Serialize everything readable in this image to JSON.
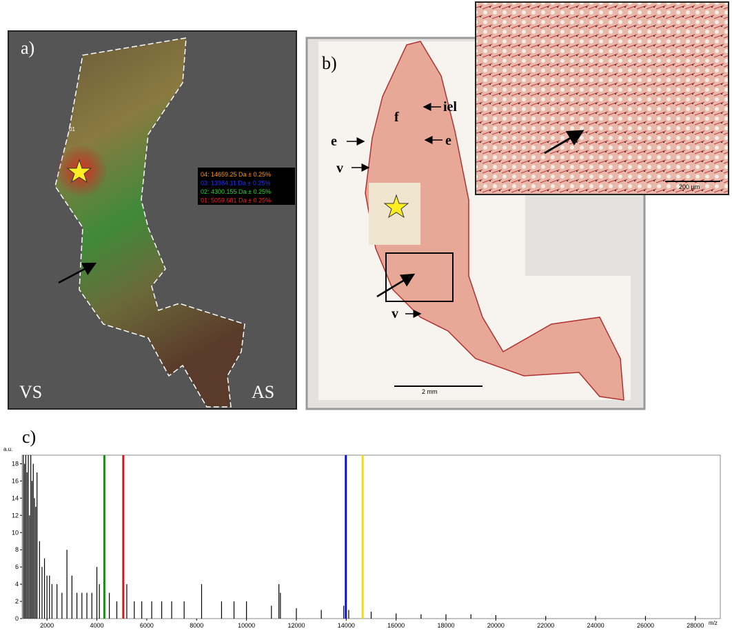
{
  "panels": {
    "a": {
      "label": "a)",
      "region_label": "01",
      "left_label": "VS",
      "right_label": "AS",
      "legend": [
        {
          "text": "04: 14659.25 Da ± 0.25%",
          "color": "#ff9900"
        },
        {
          "text": "03: 13984.11 Da ± 0.25%",
          "color": "#2233ff"
        },
        {
          "text": "02: 4300.155 Da ± 0.25%",
          "color": "#22dd22"
        },
        {
          "text": "01: 5059.681 Da ± 0.25%",
          "color": "#ff2020"
        }
      ]
    },
    "b": {
      "label": "b)",
      "annotations": [
        "iel",
        "f",
        "e",
        "e",
        "v",
        "v"
      ],
      "scale_bar": "2 mm",
      "inset_scale_bar": "200 µm"
    }
  },
  "chart_data": {
    "type": "stem",
    "title": "c)",
    "y_unit": "a.u.",
    "x_unit": "m/z",
    "color": "#000000",
    "x": [
      1050,
      1100,
      1150,
      1200,
      1250,
      1300,
      1350,
      1400,
      1450,
      1500,
      1550,
      1600,
      1700,
      1800,
      1900,
      2000,
      2100,
      2200,
      2400,
      2600,
      2800,
      3000,
      3200,
      3400,
      3600,
      3800,
      4000,
      4100,
      4300,
      4500,
      4800,
      5060,
      5200,
      5500,
      5800,
      6200,
      6600,
      7000,
      7500,
      8200,
      9000,
      9500,
      10000,
      11000,
      11300,
      11360,
      12000,
      13000,
      13900,
      13984,
      14100,
      14659,
      15000,
      16000,
      17000,
      18000,
      19000,
      20000,
      22000,
      24000,
      26000,
      28000
    ],
    "values": [
      19,
      18,
      19,
      17,
      19,
      12,
      19,
      16,
      18,
      14,
      13,
      17,
      9,
      6,
      7,
      5,
      5,
      4,
      4,
      3,
      8,
      5,
      3,
      3,
      3,
      3,
      6,
      4,
      3,
      3,
      2,
      11,
      4,
      2,
      2,
      2,
      2,
      2,
      2,
      4,
      2,
      2,
      2,
      1.5,
      4,
      3,
      1.2,
      1,
      1.5,
      1.8,
      1,
      1.2,
      0.8,
      0.6,
      0.5,
      0.5,
      0.5,
      0.4,
      0.3,
      0.3,
      0.3,
      0.3
    ],
    "markers": [
      {
        "x": 4300,
        "color": "#1a8c1a"
      },
      {
        "x": 5060,
        "color": "#e01010"
      },
      {
        "x": 13984,
        "color": "#1010d0"
      },
      {
        "x": 14659,
        "color": "#f0e000"
      }
    ],
    "xlim": [
      1000,
      29000
    ],
    "ylim": [
      0,
      19
    ],
    "xticks": [
      2000,
      4000,
      6000,
      8000,
      10000,
      12000,
      14000,
      16000,
      18000,
      20000,
      22000,
      24000,
      26000,
      28000
    ],
    "yticks": [
      0,
      2,
      4,
      6,
      8,
      10,
      12,
      14,
      16,
      18
    ]
  }
}
